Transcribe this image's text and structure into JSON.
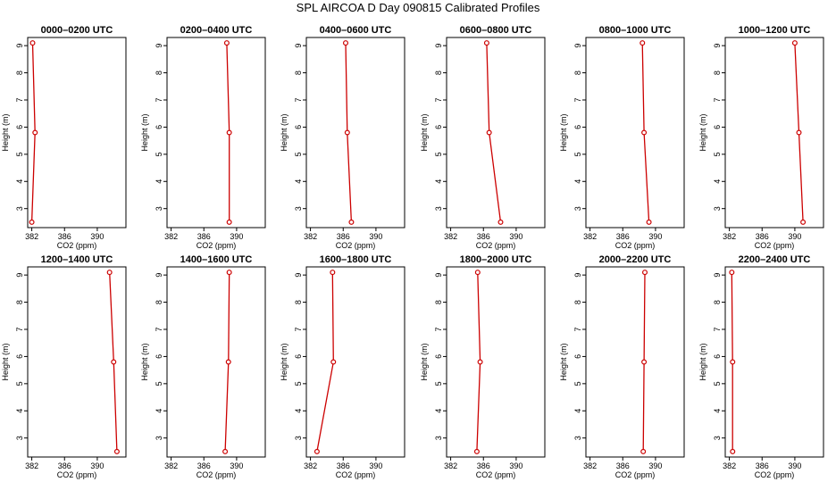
{
  "figure_title": "SPL AIRCOA D  Day 090815  Calibrated Profiles",
  "colors": {
    "line": "#cc0000",
    "axis": "#000000"
  },
  "chart_data": {
    "type": "line",
    "panel_type": "vertical-profile",
    "shared": {
      "xlabel": "CO2 (ppm)",
      "ylabel": "Height (m)",
      "xlim": [
        381.5,
        393.5
      ],
      "ylim": [
        2.3,
        9.3
      ],
      "xticks": [
        382,
        386,
        390
      ],
      "yticks": [
        3,
        4,
        5,
        6,
        7,
        8,
        9
      ],
      "heights": [
        2.5,
        5.8,
        9.1
      ]
    },
    "panels": [
      {
        "title": "0000–0200 UTC",
        "co2": [
          382.0,
          382.4,
          382.1
        ]
      },
      {
        "title": "0200–0400 UTC",
        "co2": [
          389.1,
          389.1,
          388.8
        ]
      },
      {
        "title": "0400–0600 UTC",
        "co2": [
          387.0,
          386.5,
          386.3
        ]
      },
      {
        "title": "0600–0800 UTC",
        "co2": [
          388.1,
          386.7,
          386.4
        ]
      },
      {
        "title": "0800–1000 UTC",
        "co2": [
          389.2,
          388.6,
          388.4
        ]
      },
      {
        "title": "1000–1200 UTC",
        "co2": [
          391.0,
          390.5,
          390.0
        ]
      },
      {
        "title": "1200–1400 UTC",
        "co2": [
          392.4,
          392.0,
          391.5
        ]
      },
      {
        "title": "1400–1600 UTC",
        "co2": [
          388.6,
          389.0,
          389.1
        ]
      },
      {
        "title": "1600–1800 UTC",
        "co2": [
          382.8,
          384.8,
          384.7
        ]
      },
      {
        "title": "1800–2000 UTC",
        "co2": [
          385.2,
          385.6,
          385.3
        ]
      },
      {
        "title": "2000–2200 UTC",
        "co2": [
          388.5,
          388.6,
          388.7
        ]
      },
      {
        "title": "2200–2400 UTC",
        "co2": [
          382.4,
          382.4,
          382.3
        ]
      }
    ]
  }
}
